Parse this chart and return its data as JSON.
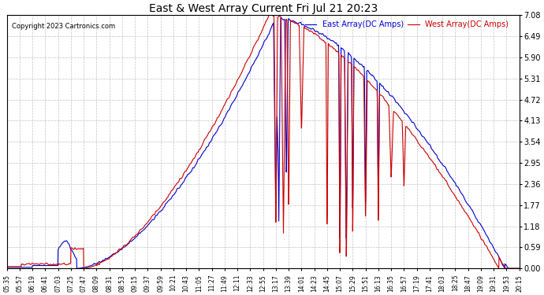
{
  "title": "East & West Array Current Fri Jul 21 20:23",
  "copyright": "Copyright 2023 Cartronics.com",
  "legend_east": "East Array(DC Amps)",
  "legend_west": "West Array(DC Amps)",
  "east_color": "#0000cc",
  "west_color": "#cc0000",
  "background_color": "#ffffff",
  "grid_color": "#aaaaaa",
  "ylim": [
    0.0,
    7.08
  ],
  "yticks": [
    0.0,
    0.59,
    1.18,
    1.77,
    2.36,
    2.95,
    3.54,
    4.13,
    4.72,
    5.31,
    5.9,
    6.49,
    7.08
  ],
  "xtick_labels": [
    "05:35",
    "05:57",
    "06:19",
    "06:41",
    "07:03",
    "07:25",
    "07:47",
    "08:09",
    "08:31",
    "08:53",
    "09:15",
    "09:37",
    "09:59",
    "10:21",
    "10:43",
    "11:05",
    "11:27",
    "11:49",
    "12:11",
    "12:33",
    "12:55",
    "13:17",
    "13:39",
    "14:01",
    "14:23",
    "14:45",
    "15:07",
    "15:29",
    "15:51",
    "16:13",
    "16:35",
    "16:57",
    "17:19",
    "17:41",
    "18:03",
    "18:25",
    "18:47",
    "19:09",
    "19:31",
    "19:53",
    "20:15"
  ]
}
